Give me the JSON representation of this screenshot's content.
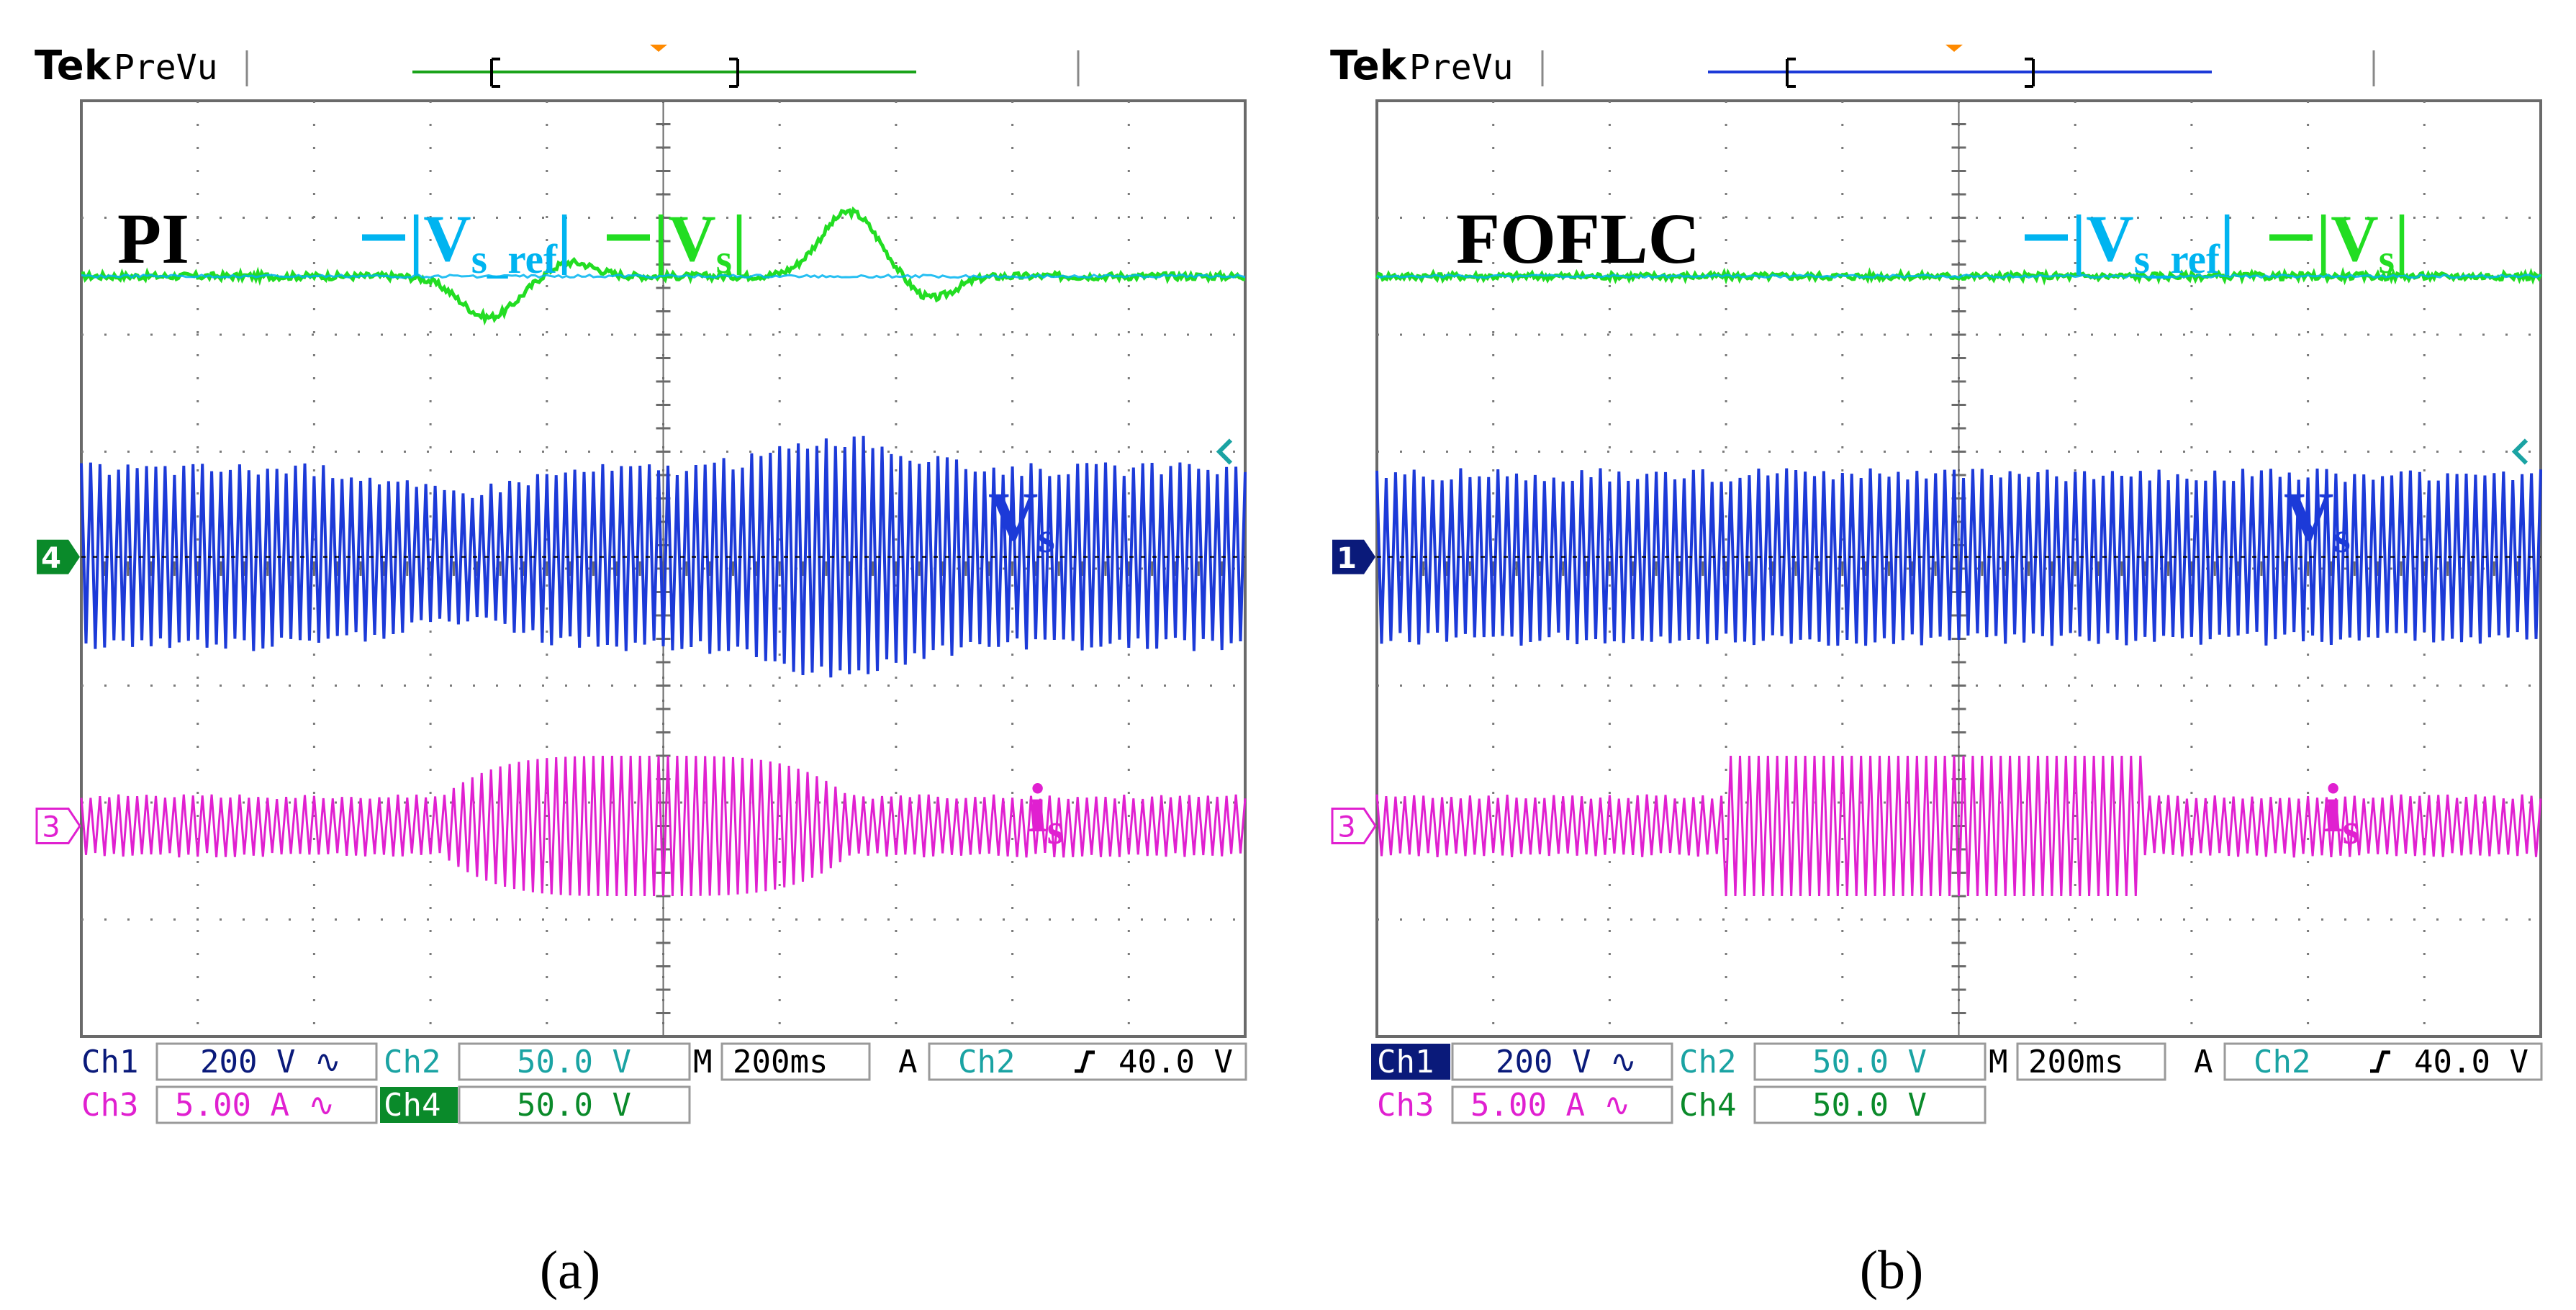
{
  "figure": {
    "panels": [
      {
        "id": "a",
        "caption": "(a)",
        "brand": "Tek",
        "mode": "PreVu",
        "controller_label": "PI",
        "labels": {
          "vsref_main": "V",
          "vsref_sub": "s_ref",
          "vs_main": "V",
          "vs_sub": "s",
          "vs_trace_main": "V",
          "vs_trace_sub": "s",
          "is_main": "i",
          "is_sub": "s"
        },
        "ground_markers": {
          "top": "4",
          "bottom": "3"
        },
        "readout": {
          "row1": [
            {
              "ch": "Ch1",
              "val": "200 V ∿"
            },
            {
              "ch": "Ch2",
              "val": "50.0 V"
            }
          ],
          "row2": [
            {
              "ch": "Ch3",
              "val": "5.00 A ∿"
            },
            {
              "ch": "Ch4",
              "val": "50.0 V"
            }
          ],
          "timebase_prefix": "M",
          "timebase": "200ms",
          "trigger_prefix": "A",
          "trigger_ch": "Ch2",
          "trigger_level": "40.0 V"
        }
      },
      {
        "id": "b",
        "caption": "(b)",
        "brand": "Tek",
        "mode": "PreVu",
        "controller_label": "FOFLC",
        "labels": {
          "vsref_main": "V",
          "vsref_sub": "s_ref",
          "vs_main": "V",
          "vs_sub": "s",
          "vs_trace_main": "V",
          "vs_trace_sub": "s",
          "is_main": "i",
          "is_sub": "s"
        },
        "ground_markers": {
          "top": "1",
          "bottom": "3"
        },
        "readout": {
          "row1": [
            {
              "ch": "Ch1",
              "val": "200 V ∿"
            },
            {
              "ch": "Ch2",
              "val": "50.0 V"
            }
          ],
          "row2": [
            {
              "ch": "Ch3",
              "val": "5.00 A ∿"
            },
            {
              "ch": "Ch4",
              "val": "50.0 V"
            }
          ],
          "timebase_prefix": "M",
          "timebase": "200ms",
          "trigger_prefix": "A",
          "trigger_ch": "Ch2",
          "trigger_level": "40.0 V"
        }
      }
    ]
  },
  "chart_data": [
    {
      "type": "line",
      "title": "PI",
      "screen": {
        "hdiv": 10,
        "vdiv": 8,
        "time_per_div": "200ms"
      },
      "series": [
        {
          "name": "|Vs_ref|",
          "color": "#00b4f0",
          "scale": "50.0 V/div",
          "trace": "flat",
          "events": []
        },
        {
          "name": "|Vs|",
          "color": "#22dd22",
          "scale": "50.0 V/div",
          "trace": "flat with transients",
          "events": [
            {
              "t_div": 3.5,
              "dev_div": -0.35
            },
            {
              "t_div": 6.6,
              "dev_div": 0.55
            }
          ]
        },
        {
          "name": "Vs",
          "color": "#1c3ad8",
          "scale": "200 V/div",
          "trace": "ac",
          "amplitude_div": 0.75,
          "events": [
            {
              "t_div": 3.2,
              "amp_div": -0.2
            },
            {
              "t_div": 6.5,
              "amp_div": 0.25
            }
          ]
        },
        {
          "name": "is",
          "color": "#e020d0",
          "scale": "5.00 A/div",
          "trace": "ac",
          "amplitude_div": 0.25,
          "burst": {
            "from_div": 3.1,
            "to_div": 6.6,
            "amplitude_div": 0.6
          }
        }
      ]
    },
    {
      "type": "line",
      "title": "FOFLC",
      "screen": {
        "hdiv": 10,
        "vdiv": 8,
        "time_per_div": "200ms"
      },
      "series": [
        {
          "name": "|Vs_ref|",
          "color": "#00b4f0",
          "scale": "50.0 V/div",
          "trace": "flat",
          "events": []
        },
        {
          "name": "|Vs|",
          "color": "#22dd22",
          "scale": "50.0 V/div",
          "trace": "flat",
          "events": []
        },
        {
          "name": "Vs",
          "color": "#1c3ad8",
          "scale": "200 V/div",
          "trace": "ac",
          "amplitude_div": 0.7,
          "events": []
        },
        {
          "name": "is",
          "color": "#e020d0",
          "scale": "5.00 A/div",
          "trace": "ac",
          "amplitude_div": 0.25,
          "burst": {
            "from_div": 3.0,
            "to_div": 6.6,
            "amplitude_div": 0.6
          }
        }
      ]
    }
  ]
}
